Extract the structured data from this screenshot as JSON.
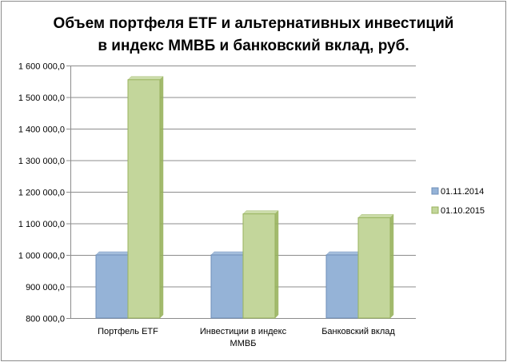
{
  "chart_data": {
    "type": "bar",
    "title_lines": [
      "Объем портфеля ETF и альтернативных  инвестиций",
      "в индекс ММВБ и банковский  вклад, руб."
    ],
    "categories": [
      [
        "Портфель ETF"
      ],
      [
        "Инвестиции в индекс",
        "ММВБ"
      ],
      [
        "Банковский вклад"
      ]
    ],
    "series": [
      {
        "name": "01.11.2014",
        "values": [
          1000000,
          1000000,
          1000000
        ],
        "color": "#95b3d7",
        "edge": "#6f8fb8"
      },
      {
        "name": "01.10.2015",
        "values": [
          1555000,
          1130000,
          1118000
        ],
        "color": "#c3d69b",
        "edge": "#98b35e"
      }
    ],
    "ylim": [
      800000,
      1600000
    ],
    "yticks": [
      800000,
      900000,
      1000000,
      1100000,
      1200000,
      1300000,
      1400000,
      1500000,
      1600000
    ],
    "ytick_labels": [
      "800 000,0",
      "900 000,0",
      "1 000 000,0",
      "1 100 000,0",
      "1 200 000,0",
      "1 300 000,0",
      "1 400 000,0",
      "1 500 000,0",
      "1 600 000,0"
    ],
    "grid": true,
    "legend_position": "right"
  }
}
